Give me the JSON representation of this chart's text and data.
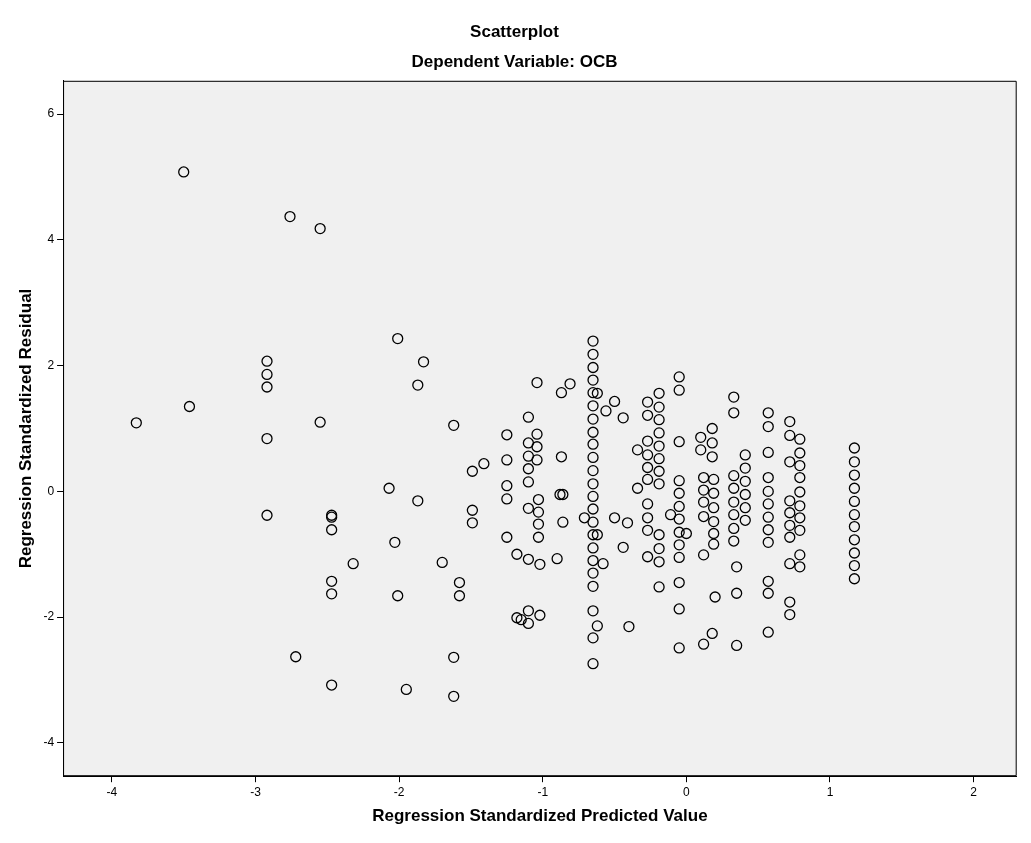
{
  "chart_data": {
    "type": "scatter",
    "title": "Scatterplot",
    "subtitle": "Dependent Variable: OCB",
    "xlabel": "Regression Standardized Predicted Value",
    "ylabel": "Regression Standardized Residual",
    "xlim": [
      -4.34,
      2.3
    ],
    "ylim": [
      -4.53,
      6.53
    ],
    "xticks": [
      -4,
      -3,
      -2,
      -1,
      0,
      1,
      2
    ],
    "yticks": [
      -4,
      -2,
      0,
      2,
      4,
      6
    ],
    "grid": false,
    "legend": false,
    "marker": "circle",
    "series": [
      {
        "color": "#000000",
        "x": [
          -3.5,
          -2.76,
          -2.55,
          -2.01,
          -1.83,
          -1.87,
          -2.92,
          -2.92,
          -2.92,
          -3.46,
          -3.83,
          -2.55,
          -1.62,
          -2.92,
          -1.41,
          -1.49,
          -2.07,
          -1.87,
          -1.49,
          -1.49,
          -2.92,
          -2.47,
          -2.47,
          -2.47,
          -2.03,
          -2.32,
          -1.7,
          -2.47,
          -2.47,
          -2.01,
          -1.58,
          -1.58,
          -2.72,
          -1.62,
          -2.47,
          -1.95,
          -1.62,
          -1.25,
          -1.25,
          -1.25,
          -1.25,
          -1.25,
          -1.18,
          -1.1,
          -1.02,
          -0.9,
          -1.04,
          -1.1,
          -1.1,
          -1.1,
          -1.1,
          -1.1,
          -1.04,
          -1.04,
          -1.04,
          -1.1,
          -1.03,
          -1.03,
          -1.03,
          -1.03,
          -0.87,
          -0.81,
          -0.87,
          -0.88,
          -0.86,
          -0.86,
          -1.18,
          -1.15,
          -1.1,
          -1.1,
          -1.02,
          -0.65,
          -0.65,
          -0.65,
          -0.65,
          -0.65,
          -0.65,
          -0.65,
          -0.65,
          -0.65,
          -0.65,
          -0.65,
          -0.65,
          -0.65,
          -0.65,
          -0.65,
          -0.65,
          -0.65,
          -0.65,
          -0.65,
          -0.65,
          -0.65,
          -0.65,
          -0.65,
          -0.62,
          -0.62,
          -0.58,
          -0.71,
          -0.62,
          -0.56,
          -0.5,
          -0.44,
          -0.5,
          -0.41,
          -0.44,
          -0.4,
          -0.34,
          -0.34,
          -0.27,
          -0.27,
          -0.27,
          -0.27,
          -0.27,
          -0.27,
          -0.27,
          -0.27,
          -0.27,
          -0.27,
          -0.19,
          -0.19,
          -0.19,
          -0.19,
          -0.19,
          -0.19,
          -0.19,
          -0.19,
          -0.19,
          -0.19,
          -0.19,
          -0.19,
          -0.05,
          -0.05,
          -0.05,
          -0.05,
          -0.05,
          -0.05,
          -0.05,
          -0.05,
          -0.05,
          -0.05,
          -0.05,
          -0.05,
          -0.05,
          -0.11,
          0.0,
          0.12,
          0.18,
          0.18,
          0.18,
          0.1,
          0.1,
          0.12,
          0.12,
          0.12,
          0.12,
          0.12,
          0.19,
          0.19,
          0.19,
          0.19,
          0.19,
          0.19,
          0.2,
          0.18,
          0.33,
          0.33,
          0.33,
          0.33,
          0.33,
          0.33,
          0.33,
          0.33,
          0.35,
          0.35,
          0.35,
          0.41,
          0.41,
          0.41,
          0.41,
          0.41,
          0.41,
          0.57,
          0.57,
          0.57,
          0.57,
          0.57,
          0.57,
          0.57,
          0.57,
          0.57,
          0.57,
          0.57,
          0.57,
          0.72,
          0.72,
          0.72,
          0.72,
          0.72,
          0.72,
          0.72,
          0.72,
          0.72,
          0.72,
          0.79,
          0.79,
          0.79,
          0.79,
          0.79,
          0.79,
          0.79,
          0.79,
          0.79,
          0.79,
          1.17,
          1.17,
          1.17,
          1.17,
          1.17,
          1.17,
          1.17,
          1.17,
          1.17,
          1.17,
          1.17
        ],
        "values": [
          5.08,
          4.37,
          4.18,
          2.43,
          2.06,
          1.69,
          2.07,
          1.86,
          1.66,
          1.35,
          1.09,
          1.1,
          1.05,
          0.84,
          0.44,
          0.32,
          0.05,
          -0.15,
          -0.3,
          -0.5,
          -0.38,
          -0.38,
          -0.41,
          -0.61,
          -0.81,
          -1.15,
          -1.13,
          -1.43,
          -1.63,
          -1.66,
          -1.45,
          -1.66,
          -2.63,
          -2.64,
          -3.08,
          -3.15,
          -3.26,
          0.9,
          0.5,
          0.09,
          -0.12,
          -0.73,
          -1.0,
          -1.08,
          -1.16,
          -1.07,
          1.73,
          1.18,
          0.77,
          0.56,
          0.36,
          0.15,
          0.91,
          0.71,
          0.5,
          -0.27,
          -0.13,
          -0.33,
          -0.52,
          -0.73,
          1.57,
          1.71,
          0.55,
          -0.05,
          -0.05,
          -0.49,
          -2.01,
          -2.04,
          -1.9,
          -2.1,
          -1.97,
          2.39,
          2.18,
          1.97,
          1.77,
          1.57,
          1.36,
          1.15,
          0.94,
          0.75,
          0.54,
          0.33,
          0.12,
          -0.08,
          -0.28,
          -0.49,
          -0.69,
          -0.9,
          -1.1,
          -1.3,
          -1.51,
          -1.9,
          -2.33,
          -2.74,
          -2.14,
          1.56,
          -1.15,
          -0.42,
          -0.69,
          1.28,
          1.43,
          1.17,
          -0.42,
          -0.5,
          -0.89,
          -2.15,
          0.66,
          0.05,
          1.42,
          1.21,
          0.8,
          0.58,
          0.38,
          0.19,
          -0.2,
          -0.42,
          -0.62,
          -1.04,
          1.56,
          1.34,
          1.14,
          0.93,
          0.72,
          0.52,
          0.32,
          0.12,
          -0.69,
          -0.91,
          -1.12,
          -1.52,
          1.82,
          1.61,
          0.79,
          0.17,
          -0.03,
          -0.24,
          -0.44,
          -0.65,
          -0.85,
          -1.05,
          -1.45,
          -1.87,
          -2.49,
          -0.37,
          -0.67,
          -2.43,
          1.0,
          0.77,
          0.55,
          0.86,
          0.66,
          0.22,
          0.02,
          -0.17,
          -0.4,
          -1.01,
          0.19,
          -0.03,
          -0.26,
          -0.48,
          -0.67,
          -0.84,
          -1.68,
          -2.26,
          1.5,
          1.25,
          0.25,
          0.05,
          -0.17,
          -0.37,
          -0.59,
          -0.79,
          -1.2,
          -1.62,
          -2.45,
          0.58,
          0.37,
          0.16,
          -0.05,
          -0.26,
          -0.46,
          1.25,
          1.03,
          0.62,
          0.22,
          0.0,
          -0.2,
          -0.41,
          -0.61,
          -0.81,
          -1.43,
          -1.62,
          -2.24,
          1.11,
          0.89,
          0.47,
          -0.15,
          -0.34,
          -0.54,
          -0.73,
          -1.15,
          -1.76,
          -1.96,
          0.83,
          0.61,
          0.41,
          0.22,
          -0.01,
          -0.23,
          -0.42,
          -0.62,
          -1.01,
          -1.2,
          0.69,
          0.47,
          0.26,
          0.05,
          -0.16,
          -0.37,
          -0.56,
          -0.77,
          -0.98,
          -1.18,
          -1.39
        ]
      }
    ]
  }
}
